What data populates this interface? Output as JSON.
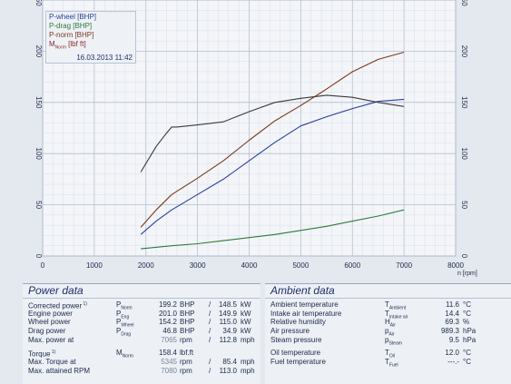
{
  "chart_data": {
    "type": "line",
    "xlabel": "n [rpm]",
    "xlim": [
      0,
      8000
    ],
    "ylim": [
      0,
      250
    ],
    "x_ticks": [
      0,
      1000,
      2000,
      3000,
      4000,
      5000,
      6000,
      7000,
      8000
    ],
    "y_ticks": [
      0,
      50,
      100,
      150,
      200,
      250
    ],
    "grid": true,
    "legend_position": "top-left",
    "legend_date": "16.03.2013 11:42",
    "series": [
      {
        "name": "P-wheel [BHP]",
        "color": "#2a3f9a",
        "x": [
          1900,
          2200,
          2500,
          3000,
          3500,
          4000,
          4500,
          5000,
          5500,
          6000,
          6500,
          7000
        ],
        "y": [
          21,
          34,
          45,
          60,
          75,
          93,
          111,
          127,
          136,
          144,
          151,
          153
        ]
      },
      {
        "name": "P-drag [BHP]",
        "color": "#2d7a3a",
        "x": [
          1900,
          2500,
          3000,
          3500,
          4000,
          4500,
          5000,
          5500,
          6000,
          6500,
          7000
        ],
        "y": [
          7,
          10,
          12,
          15,
          18,
          21,
          25,
          29,
          34,
          39,
          45
        ]
      },
      {
        "name": "P-norm [BHP]",
        "color": "#7a3a1a",
        "x": [
          1900,
          2200,
          2500,
          3000,
          3500,
          4000,
          4500,
          5000,
          5500,
          6000,
          6500,
          7000
        ],
        "y": [
          28,
          45,
          60,
          76,
          93,
          113,
          132,
          147,
          163,
          180,
          192,
          199
        ]
      },
      {
        "name": "M",
        "color": "#3a3a3a",
        "x": [
          1900,
          2200,
          2400,
          2500,
          2600,
          3000,
          3500,
          4000,
          4500,
          5000,
          5500,
          6000,
          6500,
          7000
        ],
        "y": [
          82,
          107,
          120,
          126,
          126,
          128,
          131,
          141,
          150,
          154,
          157,
          155,
          150,
          146
        ]
      }
    ]
  },
  "legend": {
    "items": [
      "P-wheel [BHP]",
      "P-drag [BHP]",
      "P-norm [BHP]"
    ],
    "torque_main": "M",
    "torque_sub": "Norm",
    "torque_unit": "[lbf ft]",
    "date": "16.03.2013 11:42"
  },
  "power": {
    "title": "Power data",
    "rows": [
      {
        "label": "Corrected power",
        "note": "1)",
        "sym": "P",
        "sub": "Norm",
        "v1": "199.2",
        "u1": "BHP",
        "sep": "/",
        "v2": "148.5",
        "u2": "kW"
      },
      {
        "label": "Engine power",
        "note": "",
        "sym": "P",
        "sub": "Eng",
        "v1": "201.0",
        "u1": "BHP",
        "sep": "/",
        "v2": "149.9",
        "u2": "kW"
      },
      {
        "label": "Wheel power",
        "note": "",
        "sym": "P",
        "sub": "Wheel",
        "v1": "154.2",
        "u1": "BHP",
        "sep": "/",
        "v2": "115.0",
        "u2": "kW"
      },
      {
        "label": "Drag power",
        "note": "",
        "sym": "P",
        "sub": "Drag",
        "v1": "46.8",
        "u1": "BHP",
        "sep": "/",
        "v2": "34.9",
        "u2": "kW"
      },
      {
        "label": "Max. power at",
        "note": "",
        "sym": "",
        "sub": "",
        "v1": "7065",
        "u1": "rpm",
        "sep": "/",
        "v2": "112.8",
        "u2": "mph"
      }
    ],
    "rows2": [
      {
        "label": "Torque",
        "note": "1)",
        "sym": "M",
        "sub": "Norm",
        "v1": "158.4",
        "u1": "lbf.ft",
        "sep": "",
        "v2": "",
        "u2": ""
      },
      {
        "label": "Max. Torque at",
        "note": "",
        "sym": "",
        "sub": "",
        "v1": "5345",
        "u1": "rpm",
        "sep": "/",
        "v2": "85.4",
        "u2": "mph"
      },
      {
        "label": "Max. attained RPM",
        "note": "",
        "sym": "",
        "sub": "",
        "v1": "7080",
        "u1": "rpm",
        "sep": "/",
        "v2": "113.0",
        "u2": "mph"
      }
    ]
  },
  "ambient": {
    "title": "Ambient data",
    "rows": [
      {
        "label": "Ambient temperature",
        "sym": "T",
        "sub": "Ambient",
        "v": "11.6",
        "u": "°C"
      },
      {
        "label": "Intake air temperature",
        "sym": "T",
        "sub": "Intake air",
        "v": "14.4",
        "u": "°C"
      },
      {
        "label": "Relative humidity",
        "sym": "H",
        "sub": "Air",
        "v": "69.3",
        "u": "%"
      },
      {
        "label": "Air pressure",
        "sym": "p",
        "sub": "Air",
        "v": "989.3",
        "u": "hPa"
      },
      {
        "label": "Steam pressure",
        "sym": "p",
        "sub": "Steam",
        "v": "9.5",
        "u": "hPa"
      }
    ],
    "rows2": [
      {
        "label": "Oil temperature",
        "sym": "T",
        "sub": "Oil",
        "v": "12.0",
        "u": "°C"
      },
      {
        "label": "Fuel temperature",
        "sym": "T",
        "sub": "Fuel",
        "v": "---.-",
        "u": "°C"
      }
    ]
  }
}
